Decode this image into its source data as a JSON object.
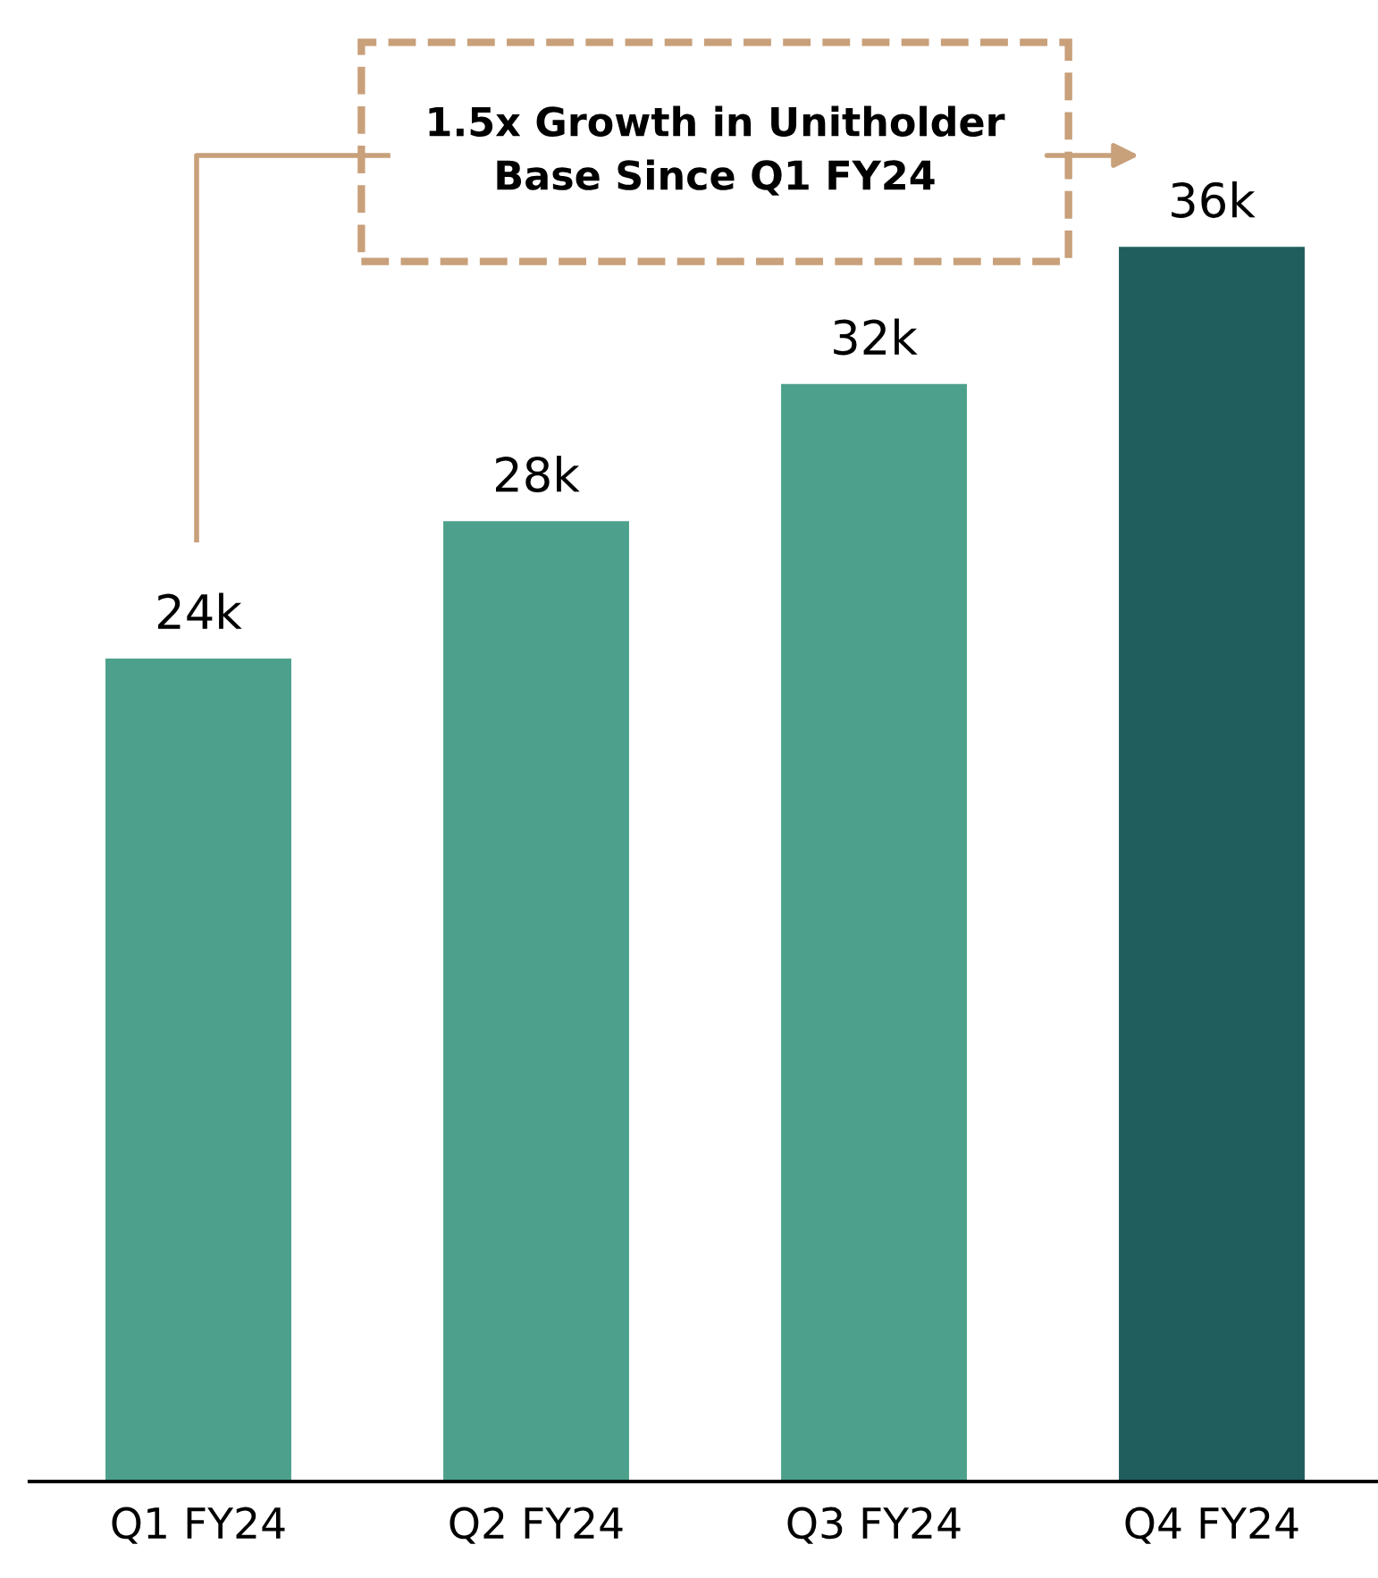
{
  "chart_data": {
    "type": "bar",
    "categories": [
      "Q1 FY24",
      "Q2 FY24",
      "Q3 FY24",
      "Q4 FY24"
    ],
    "values": [
      24,
      28,
      32,
      36
    ],
    "colors": [
      "#4da18c",
      "#4da18c",
      "#4da18c",
      "#1f5e5c"
    ],
    "value_labels": [
      "24k",
      "28k",
      "32k",
      "36k"
    ],
    "tick_labels": "x",
    "grid": false,
    "legend": false,
    "annotations": [
      "1.5x Growth in Unitholder\nBase Since Q1 FY24"
    ]
  }
}
